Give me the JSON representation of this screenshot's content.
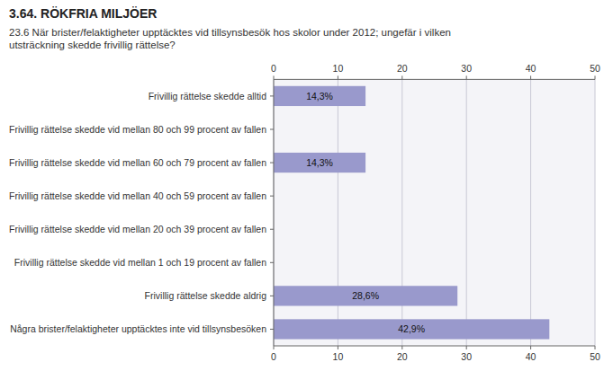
{
  "chart_data": {
    "type": "bar",
    "orientation": "horizontal",
    "title": "3.64. RÖKFRIA MILJÖER",
    "subtitle": "23.6 När brister/felaktigheter upptäcktes vid tillsynsbesök hos skolor under 2012; ungefär i vilken\nutsträckning skedde frivillig rättelse?",
    "categories": [
      "Frivillig rättelse skedde alltid",
      "Frivillig rättelse skedde vid mellan 80 och 99 procent av fallen",
      "Frivillig rättelse skedde vid mellan 60 och 79 procent av fallen",
      "Frivillig rättelse skedde vid mellan 40 och 59 procent av fallen",
      "Frivillig rättelse skedde vid mellan 20 och 39 procent av fallen",
      "Frivillig rättelse skedde vid mellan 1 och 19 procent av fallen",
      "Frivillig rättelse skedde aldrig",
      "Några brister/felaktigheter upptäcktes inte vid tillsynsbesöken"
    ],
    "values": [
      14.3,
      0,
      14.3,
      0,
      0,
      0,
      28.6,
      42.9
    ],
    "value_labels": [
      "14,3%",
      null,
      "14,3%",
      null,
      null,
      null,
      "28,6%",
      "42,9%"
    ],
    "data_labels": true,
    "color": "#9999CC",
    "xlim": [
      0,
      50
    ],
    "xticks": [
      0,
      10,
      20,
      30,
      40,
      50
    ],
    "grid": true
  }
}
